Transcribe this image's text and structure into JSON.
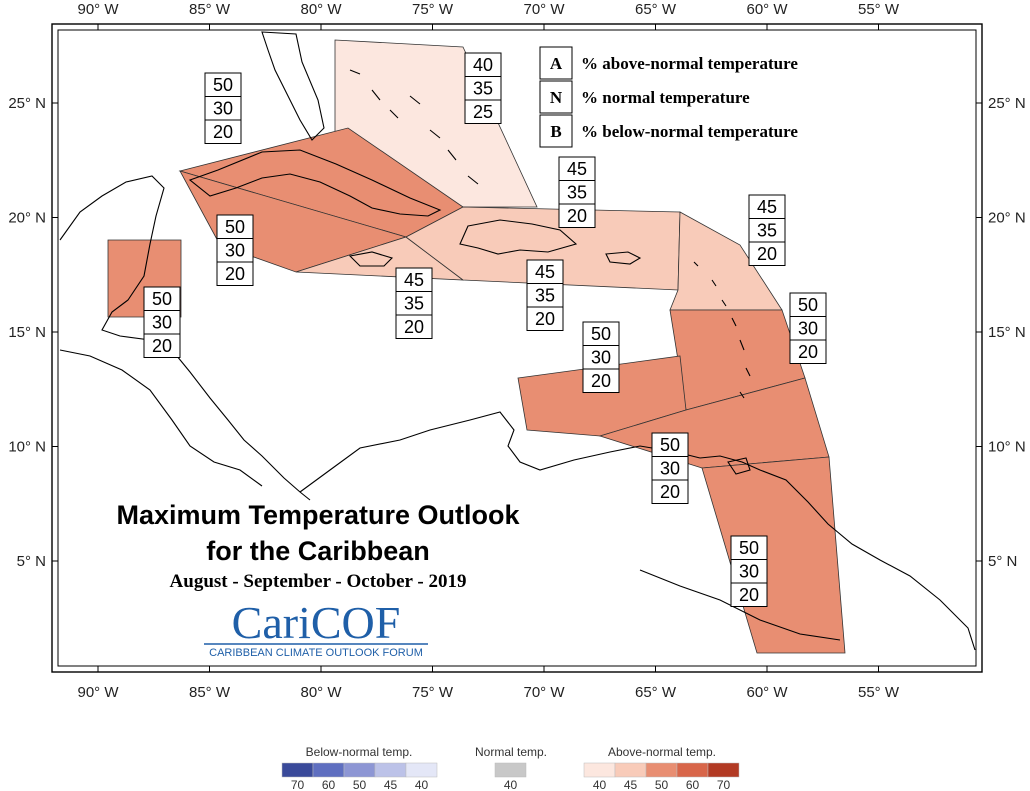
{
  "axes": {
    "lon_ticks": [
      {
        "lon": -90,
        "label": "90° W"
      },
      {
        "lon": -85,
        "label": "85° W"
      },
      {
        "lon": -80,
        "label": "80° W"
      },
      {
        "lon": -75,
        "label": "75° W"
      },
      {
        "lon": -70,
        "label": "70° W"
      },
      {
        "lon": -65,
        "label": "65° W"
      },
      {
        "lon": -60,
        "label": "60° W"
      },
      {
        "lon": -55,
        "label": "55° W"
      }
    ],
    "lat_ticks": [
      {
        "lat": 25,
        "label": "25° N"
      },
      {
        "lat": 20,
        "label": "20° N"
      },
      {
        "lat": 15,
        "label": "15° N"
      },
      {
        "lat": 10,
        "label": "10° N"
      },
      {
        "lat": 5,
        "label": "5° N"
      }
    ]
  },
  "key": {
    "items": [
      {
        "letter": "A",
        "text": "% above-normal temperature"
      },
      {
        "letter": "N",
        "text": "% normal temperature"
      },
      {
        "letter": "B",
        "text": "% below-normal temperature"
      }
    ]
  },
  "regions": [
    {
      "id": "bahamas",
      "fill": "#fce7df",
      "A": "40",
      "N": "35",
      "B": "25"
    },
    {
      "id": "cuba",
      "fill": "#e88e72",
      "A": "50",
      "N": "30",
      "B": "20"
    },
    {
      "id": "cayman-jamaica-sea",
      "fill": "#e88e72",
      "A": "50",
      "N": "30",
      "B": "20"
    },
    {
      "id": "belize",
      "fill": "#e88e72",
      "A": "50",
      "N": "30",
      "B": "20"
    },
    {
      "id": "hispaniola-jamaica",
      "fill": "#f8cbb9",
      "A": "45",
      "N": "35",
      "B": "20"
    },
    {
      "id": "hispaniola-pr",
      "fill": "#f8cbb9",
      "A": "45",
      "N": "35",
      "B": "20"
    },
    {
      "id": "turks-caicos",
      "fill": "#f8cbb9",
      "A": "45",
      "N": "35",
      "B": "20"
    },
    {
      "id": "leewards",
      "fill": "#f8cbb9",
      "A": "45",
      "N": "35",
      "B": "20"
    },
    {
      "id": "windwards",
      "fill": "#e88e72",
      "A": "50",
      "N": "30",
      "B": "20"
    },
    {
      "id": "abc-islands",
      "fill": "#e88e72",
      "A": "50",
      "N": "30",
      "B": "20"
    },
    {
      "id": "trinidad",
      "fill": "#e88e72",
      "A": "50",
      "N": "30",
      "B": "20"
    },
    {
      "id": "guyana-suriname",
      "fill": "#e88e72",
      "A": "50",
      "N": "30",
      "B": "20"
    }
  ],
  "title": {
    "line1": "Maximum Temperature Outlook",
    "line2": "for the Caribbean",
    "line3": "August - September - October - 2019"
  },
  "logo": {
    "name": "CariCOF",
    "subtitle": "CARIBBEAN CLIMATE OUTLOOK FORUM"
  },
  "legend": {
    "below": {
      "heading": "Below-normal temp.",
      "swatches": [
        {
          "value": "70",
          "color": "#3a4a9a"
        },
        {
          "value": "60",
          "color": "#5f6fc0"
        },
        {
          "value": "50",
          "color": "#8d96d4"
        },
        {
          "value": "45",
          "color": "#bcc2e8"
        },
        {
          "value": "40",
          "color": "#e4e7f7"
        }
      ]
    },
    "normal": {
      "heading": "Normal temp.",
      "swatches": [
        {
          "value": "40",
          "color": "#c8c8c8"
        }
      ]
    },
    "above": {
      "heading": "Above-normal temp.",
      "swatches": [
        {
          "value": "40",
          "color": "#fce7df"
        },
        {
          "value": "45",
          "color": "#f8cbb9"
        },
        {
          "value": "50",
          "color": "#e88e72"
        },
        {
          "value": "60",
          "color": "#d8664a"
        },
        {
          "value": "70",
          "color": "#b23a24"
        }
      ]
    }
  }
}
